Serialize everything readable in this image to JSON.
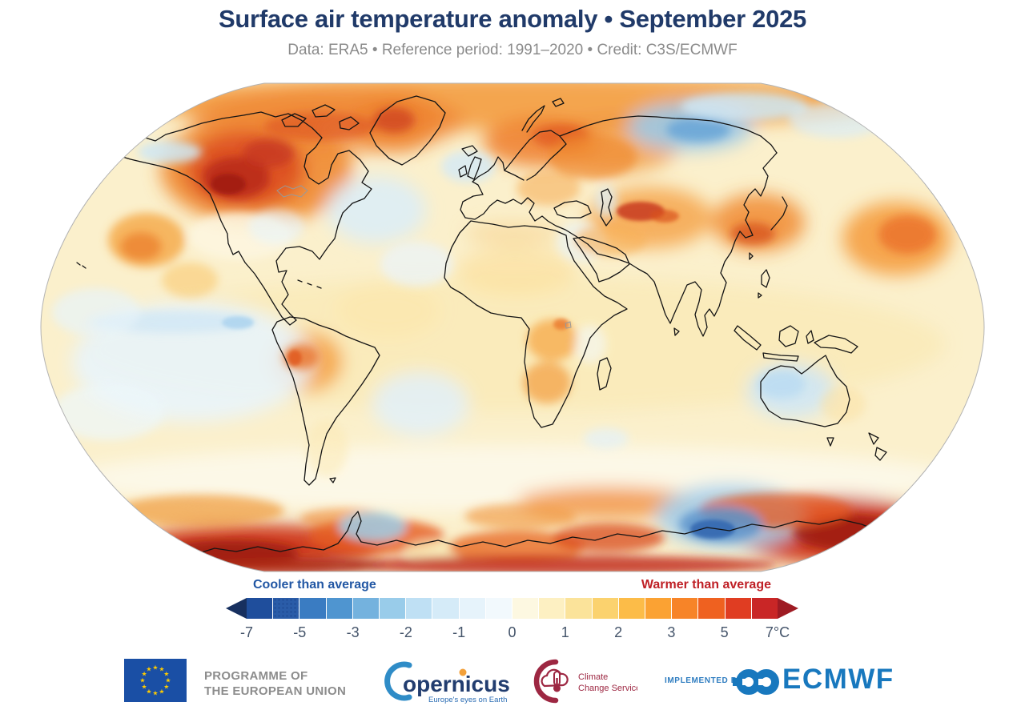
{
  "title": "Surface air temperature anomaly • September 2025",
  "subtitle": "Data: ERA5 • Reference period: 1991–2020 • Credit: C3S/ECMWF",
  "map": {
    "type": "global surface air temperature anomaly map",
    "units": "°C",
    "anomaly_range": [
      -7,
      7
    ]
  },
  "legend": {
    "cooler_label": "Cooler than average",
    "warmer_label": "Warmer than average",
    "ticks": [
      "-7",
      "-5",
      "-3",
      "-2",
      "-1",
      "0",
      "1",
      "2",
      "3",
      "5",
      "7°C"
    ],
    "segment_colors": [
      "#1f4e9c",
      "#2a5ca8",
      "#3a7cc2",
      "#4f95d0",
      "#74b2de",
      "#99ccea",
      "#bfe0f4",
      "#d5ebf8",
      "#e6f3fb",
      "#f2f9fd",
      "#fdf8e1",
      "#fdf0c2",
      "#fbe39a",
      "#fbd26e",
      "#fcbc48",
      "#fba233",
      "#f78428",
      "#ef6120",
      "#e03d22",
      "#c92626"
    ],
    "left_arrow_color": "#17305f",
    "right_arrow_color": "#9e1b23",
    "stippled_segment_index": 1
  },
  "footer": {
    "eu": {
      "line1": "PROGRAMME OF",
      "line2": "THE EUROPEAN UNION",
      "star_glyph": "★",
      "flag_color": "#1a4fa5"
    },
    "copernicus": {
      "wordmark": "opernicus",
      "tagline": "Europe's eyes on Earth"
    },
    "ccs": {
      "line1": "Climate",
      "line2": "Change Service"
    },
    "implemented_by": "IMPLEMENTED BY",
    "ecmwf": "ECMWF"
  }
}
